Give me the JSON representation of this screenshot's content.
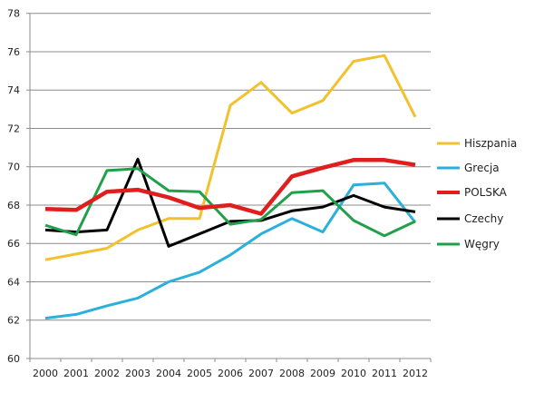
{
  "chart_data": {
    "type": "line",
    "title": "",
    "xlabel": "",
    "ylabel": "",
    "ylim": [
      60,
      78
    ],
    "yticks": [
      60,
      62,
      64,
      66,
      68,
      70,
      72,
      74,
      76,
      78
    ],
    "grid": true,
    "legend_position": "right",
    "categories": [
      "2000",
      "2001",
      "2002",
      "2003",
      "2004",
      "2005",
      "2006",
      "2007",
      "2008",
      "2009",
      "2010",
      "2011",
      "2012"
    ],
    "series": [
      {
        "name": "Hiszpania",
        "color": "#f2c12e",
        "values": [
          65.15,
          65.45,
          65.75,
          66.7,
          67.3,
          67.3,
          73.2,
          74.4,
          72.8,
          73.45,
          75.5,
          75.8,
          72.6
        ]
      },
      {
        "name": "Grecja",
        "color": "#2ab0da",
        "values": [
          62.1,
          62.3,
          62.75,
          63.15,
          64.0,
          64.5,
          65.4,
          66.5,
          67.3,
          66.6,
          69.05,
          69.15,
          67.1
        ]
      },
      {
        "name": "POLSKA",
        "color": "#e01e1e",
        "values": [
          67.8,
          67.75,
          68.7,
          68.8,
          68.4,
          67.85,
          68.0,
          67.55,
          69.5,
          69.95,
          70.35,
          70.35,
          70.1
        ]
      },
      {
        "name": "Czechy",
        "color": "#000000",
        "values": [
          66.7,
          66.6,
          66.7,
          70.4,
          65.85,
          66.5,
          67.15,
          67.2,
          67.7,
          67.9,
          68.5,
          67.9,
          67.65
        ]
      },
      {
        "name": "Węgry",
        "color": "#21a04a",
        "values": [
          66.95,
          66.45,
          69.8,
          69.9,
          68.75,
          68.7,
          67.0,
          67.25,
          68.65,
          68.75,
          67.2,
          66.4,
          67.15
        ]
      }
    ]
  }
}
